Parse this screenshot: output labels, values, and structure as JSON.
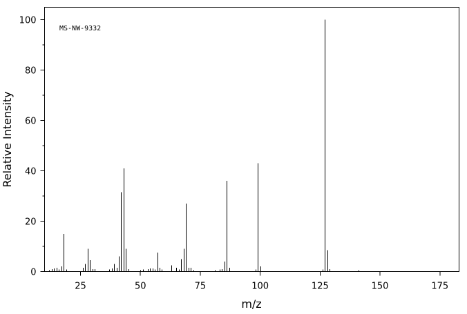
{
  "chart_data": {
    "type": "stem",
    "annotation": "MS-NW-9332",
    "xlabel": "m/z",
    "ylabel": "Relative Intensity",
    "x": [
      12,
      13,
      14,
      15,
      16,
      17,
      18,
      19,
      26,
      27,
      28,
      29,
      30,
      31,
      37,
      38,
      39,
      40,
      41,
      42,
      43,
      44,
      45,
      50,
      51,
      53,
      54,
      55,
      56,
      57,
      58,
      59,
      63,
      65,
      66,
      67,
      68,
      69,
      70,
      71,
      72,
      81,
      83,
      84,
      85,
      86,
      87,
      98,
      99,
      100,
      126,
      127,
      128,
      129,
      141
    ],
    "values": [
      0.6,
      1,
      1.2,
      1.5,
      0.8,
      2,
      15,
      0.8,
      1.5,
      3,
      9,
      4.5,
      1,
      1,
      0.8,
      1.2,
      3,
      1.5,
      6,
      31.5,
      41,
      9,
      1,
      0.6,
      0.8,
      1,
      1.2,
      1.2,
      0.8,
      7.5,
      1.5,
      0.8,
      2.5,
      1.5,
      0.8,
      5,
      9,
      27,
      1.5,
      1.5,
      0.6,
      0.6,
      0.8,
      1,
      4,
      36,
      1.5,
      0.8,
      43,
      2,
      0.8,
      100,
      8.5,
      1,
      0.5
    ],
    "color": "#000000",
    "xlim": [
      10,
      183
    ],
    "xticks": [
      25,
      50,
      75,
      100,
      125,
      150,
      175
    ],
    "ylim": [
      0,
      105
    ],
    "yticks": [
      0,
      20,
      40,
      60,
      80,
      100
    ],
    "yticks_minor": [
      10,
      30,
      50,
      70,
      90
    ]
  }
}
